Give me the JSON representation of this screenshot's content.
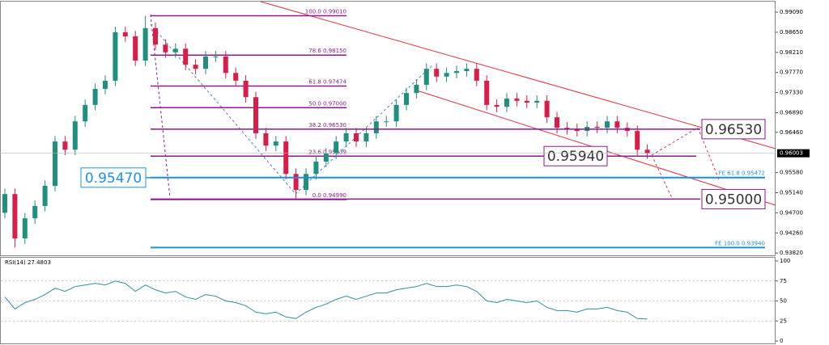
{
  "chart_data": [
    {
      "type": "candlestick",
      "up_color": "#1f8f7e",
      "down_color": "#d81e48",
      "ylim": [
        0.9377,
        0.9932
      ],
      "yticks": [
        {
          "value": 0.9909,
          "label": "0.99090"
        },
        {
          "value": 0.9865,
          "label": "0.98650"
        },
        {
          "value": 0.9821,
          "label": "0.98210"
        },
        {
          "value": 0.9777,
          "label": "0.97770"
        },
        {
          "value": 0.9733,
          "label": "0.97330"
        },
        {
          "value": 0.9689,
          "label": "0.96890"
        },
        {
          "value": 0.9646,
          "label": "0.96460"
        },
        {
          "value": 0.9558,
          "label": "0.95580"
        },
        {
          "value": 0.9514,
          "label": "0.95140"
        },
        {
          "value": 0.947,
          "label": "0.94700"
        },
        {
          "value": 0.9426,
          "label": "0.94260"
        },
        {
          "value": 0.9382,
          "label": "0.93820"
        }
      ],
      "current_price": {
        "value": 0.96003,
        "label": "0.96003"
      },
      "open": [
        0.947,
        0.9511,
        0.9414,
        0.9458,
        0.9485,
        0.9529,
        0.9626,
        0.9608,
        0.967,
        0.9706,
        0.9741,
        0.9759,
        0.9865,
        0.9856,
        0.9803,
        0.9874,
        0.9838,
        0.9821,
        0.9829,
        0.9794,
        0.9785,
        0.9812,
        0.9812,
        0.9776,
        0.9759,
        0.9723,
        0.9644,
        0.9617,
        0.9626,
        0.9555,
        0.952,
        0.9555,
        0.9582,
        0.96,
        0.9626,
        0.9644,
        0.9626,
        0.9644,
        0.967,
        0.967,
        0.9706,
        0.9732,
        0.975,
        0.9785,
        0.9768,
        0.9776,
        0.978,
        0.9785,
        0.9759,
        0.9706,
        0.9702,
        0.972,
        0.9715,
        0.9711,
        0.9715,
        0.9679,
        0.9656,
        0.9653,
        0.9649,
        0.9658,
        0.9656,
        0.967,
        0.9656,
        0.9649,
        0.9608
      ],
      "high": [
        0.9523,
        0.9523,
        0.947,
        0.9497,
        0.9541,
        0.9638,
        0.9638,
        0.9682,
        0.9718,
        0.9753,
        0.9771,
        0.9877,
        0.9877,
        0.9868,
        0.9901,
        0.9886,
        0.985,
        0.9841,
        0.9841,
        0.9806,
        0.9824,
        0.9824,
        0.9824,
        0.9788,
        0.9771,
        0.9735,
        0.9656,
        0.9638,
        0.9638,
        0.9567,
        0.9567,
        0.9594,
        0.9612,
        0.9638,
        0.9656,
        0.9656,
        0.9656,
        0.9682,
        0.9682,
        0.9718,
        0.9744,
        0.9762,
        0.9797,
        0.9797,
        0.9788,
        0.9792,
        0.9797,
        0.9797,
        0.9771,
        0.9718,
        0.9732,
        0.9732,
        0.9727,
        0.9727,
        0.9727,
        0.9691,
        0.9668,
        0.9665,
        0.967,
        0.967,
        0.9682,
        0.9682,
        0.9668,
        0.9661,
        0.962
      ],
      "low": [
        0.9458,
        0.9394,
        0.9402,
        0.9446,
        0.9473,
        0.9517,
        0.9596,
        0.9596,
        0.9658,
        0.9694,
        0.9729,
        0.9747,
        0.9844,
        0.9791,
        0.9791,
        0.9826,
        0.9809,
        0.9809,
        0.9782,
        0.9773,
        0.9773,
        0.98,
        0.9764,
        0.9747,
        0.9711,
        0.9632,
        0.9605,
        0.9605,
        0.9543,
        0.9499,
        0.9508,
        0.9543,
        0.957,
        0.9588,
        0.9614,
        0.9614,
        0.9614,
        0.9632,
        0.9658,
        0.9658,
        0.9694,
        0.972,
        0.9738,
        0.9756,
        0.9756,
        0.9764,
        0.9768,
        0.9747,
        0.9694,
        0.969,
        0.969,
        0.9703,
        0.9699,
        0.9699,
        0.9667,
        0.9644,
        0.9641,
        0.9637,
        0.9637,
        0.9644,
        0.9644,
        0.9644,
        0.9637,
        0.9596,
        0.9588
      ],
      "close": [
        0.9511,
        0.9414,
        0.9458,
        0.9485,
        0.9529,
        0.9626,
        0.9608,
        0.967,
        0.9706,
        0.9741,
        0.9759,
        0.9865,
        0.9856,
        0.9803,
        0.9874,
        0.9838,
        0.9821,
        0.9829,
        0.9794,
        0.9785,
        0.9812,
        0.9812,
        0.9776,
        0.9759,
        0.9723,
        0.9644,
        0.9617,
        0.9626,
        0.9555,
        0.952,
        0.9555,
        0.9582,
        0.96,
        0.9626,
        0.9644,
        0.9626,
        0.9644,
        0.967,
        0.967,
        0.9706,
        0.9732,
        0.975,
        0.9785,
        0.9768,
        0.9776,
        0.978,
        0.9785,
        0.9759,
        0.9706,
        0.9702,
        0.972,
        0.9715,
        0.9711,
        0.9715,
        0.9679,
        0.9656,
        0.9653,
        0.9649,
        0.9658,
        0.9656,
        0.967,
        0.9656,
        0.9649,
        0.9608,
        0.96
      ],
      "fib_color": "#8b1a8b",
      "fib_levels": [
        {
          "label": "100.0  0.99010",
          "value": 0.9901
        },
        {
          "label": "78.6  0.98150",
          "value": 0.9815
        },
        {
          "label": "61.8  0.97474",
          "value": 0.97474
        },
        {
          "label": "50.0  0.97000",
          "value": 0.97
        },
        {
          "label": "38.2  0.96530",
          "value": 0.9653
        },
        {
          "label": "23.6  0.95939",
          "value": 0.95939
        },
        {
          "label": "0.0  0.94990",
          "value": 0.9499
        }
      ],
      "fe_color": "#1e90e8",
      "fe_levels": [
        {
          "label": "FE 61.8  0.95472",
          "value": 0.95472
        },
        {
          "label": "FE 100.0  0.93940",
          "value": 0.9394
        }
      ],
      "price_boxes": [
        {
          "label": "0.96530",
          "value": 0.9653
        },
        {
          "label": "0.95940",
          "value": 0.9594
        },
        {
          "label": "0.95470",
          "value": 0.9547
        },
        {
          "label": "0.95000",
          "value": 0.95
        }
      ]
    },
    {
      "type": "line",
      "title": "RSI(14) 27.4803",
      "color": "#2f8f9a",
      "ylim": [
        0,
        100
      ],
      "yticks": [
        100,
        75,
        50,
        25,
        0
      ],
      "values": [
        55,
        40,
        48,
        52,
        58,
        66,
        62,
        68,
        70,
        72,
        70,
        75,
        72,
        62,
        70,
        64,
        60,
        62,
        55,
        52,
        58,
        56,
        50,
        48,
        44,
        36,
        34,
        36,
        30,
        28,
        36,
        42,
        46,
        52,
        56,
        52,
        56,
        60,
        60,
        64,
        66,
        68,
        72,
        68,
        68,
        70,
        68,
        62,
        50,
        48,
        52,
        50,
        48,
        50,
        42,
        38,
        38,
        36,
        40,
        40,
        42,
        38,
        36,
        28,
        27.4803
      ]
    }
  ]
}
